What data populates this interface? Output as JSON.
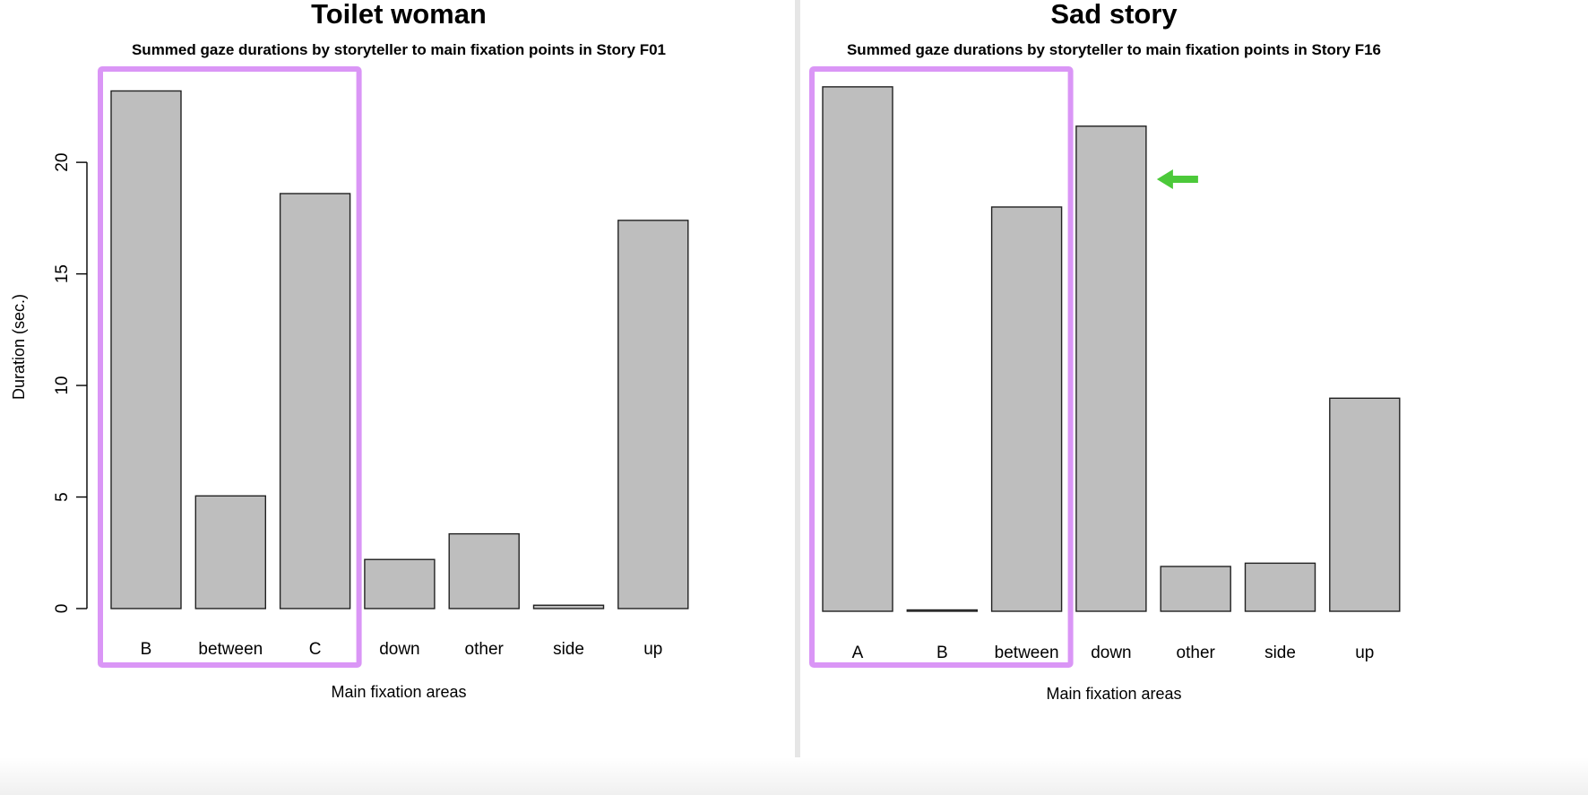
{
  "highlight_color": "#d68bf5",
  "arrow_color": "#4cc93a",
  "bar_fill": "#bebebe",
  "bar_stroke": "#222222",
  "chart_data": [
    {
      "type": "bar",
      "heading": "Toilet woman",
      "title": "Summed gaze durations by storyteller to main fixation points in Story F01",
      "xlabel": "Main fixation areas",
      "ylabel": "Duration (sec.)",
      "categories": [
        "B",
        "between",
        "C",
        "down",
        "other",
        "side",
        "up"
      ],
      "values": [
        23.2,
        5.05,
        18.6,
        2.2,
        3.35,
        0.15,
        17.4
      ],
      "ylim": [
        0,
        23.5
      ],
      "yticks": [
        0,
        5,
        10,
        15,
        20
      ],
      "ytick_labels": [
        "0",
        "5",
        "10",
        "15",
        "20"
      ],
      "grid": false,
      "highlight_box": {
        "from": "B",
        "to": "C"
      }
    },
    {
      "type": "bar",
      "heading": "Sad story",
      "title": "Summed gaze durations by storyteller to main fixation points in Story F16",
      "xlabel": "Main fixation areas",
      "ylabel": "Duration (sec.)",
      "categories": [
        "A",
        "B",
        "between",
        "down",
        "other",
        "side",
        "up"
      ],
      "values": [
        24.0,
        0.05,
        18.5,
        22.2,
        2.05,
        2.2,
        9.75
      ],
      "ylim": [
        0,
        24.2
      ],
      "yticks": [
        0,
        5,
        10,
        15,
        20
      ],
      "ytick_labels": [
        "0",
        "5",
        "10",
        "15",
        "20"
      ],
      "grid": false,
      "highlight_box": {
        "from": "A",
        "to": "between"
      },
      "arrow_points_to": "down"
    }
  ]
}
